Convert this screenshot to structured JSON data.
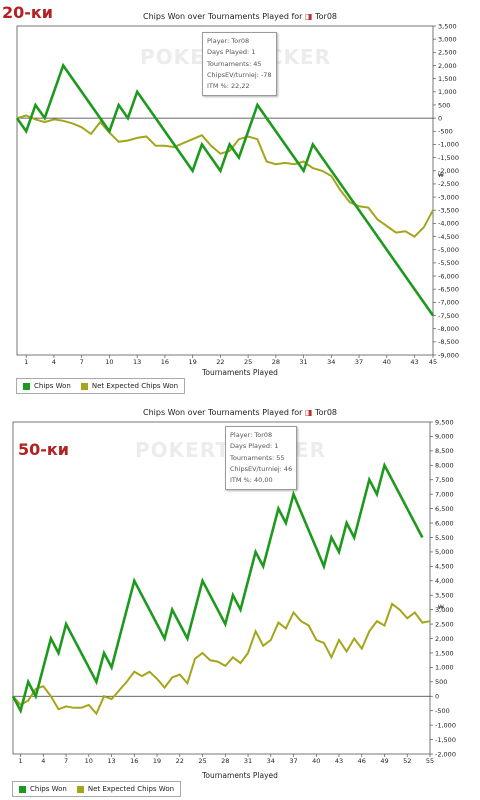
{
  "charts": [
    {
      "id": "panel1",
      "label": "20-ки",
      "infobox": {
        "player": "Player: Tor08",
        "days": "Days Played: 1",
        "tournaments": "Tournaments: 45",
        "chipsev": "ChipsEV/turniej: -78",
        "itm": "ITM %: 22,22"
      },
      "watermark": "POKERTRACKER",
      "legend": {
        "chips": "Chips Won",
        "nec": "Net Expected Chips Won"
      },
      "colors": {
        "chips": "#1d9a1d",
        "nec": "#a5a51c"
      }
    },
    {
      "id": "panel2",
      "label": "50-ки",
      "infobox": {
        "player": "Player: Tor08",
        "days": "Days Played: 1",
        "tournaments": "Tournaments: 55",
        "chipsev": "ChipsEV/turniej: 46",
        "itm": "ITM %: 40,00"
      },
      "watermark": "POKERTRACKER",
      "legend": {
        "chips": "Chips Won",
        "nec": "Net Expected Chips Won"
      },
      "colors": {
        "chips": "#1d9a1d",
        "nec": "#a5a51c"
      }
    }
  ],
  "chart_data": [
    {
      "type": "line",
      "title": "Chips Won over Tournaments Played for",
      "player_name": "Tor08",
      "xlabel": "Tournaments Played",
      "ylabel": "",
      "y_unit_symbol": "₩",
      "xlim": [
        0,
        45
      ],
      "ylim": [
        -9000,
        3500
      ],
      "xticks": [
        1,
        4,
        7,
        10,
        13,
        16,
        19,
        22,
        25,
        28,
        31,
        34,
        37,
        40,
        43,
        45
      ],
      "yticks": [
        -9000,
        -8500,
        -8000,
        -7500,
        -7000,
        -6500,
        -6000,
        -5500,
        -5000,
        -4500,
        -4000,
        -3500,
        -3000,
        -2500,
        -2000,
        -1500,
        -1000,
        -500,
        0,
        500,
        1000,
        1500,
        2000,
        2500,
        3000,
        3500
      ],
      "ytick_labels": [
        "-9,000",
        "-8,500",
        "-8,000",
        "-7,500",
        "-7,000",
        "-6,500",
        "-6,000",
        "-5,500",
        "-5,000",
        "-4,500",
        "-4,000",
        "-3,500",
        "-3,000",
        "-2,500",
        "-2,000",
        "-1,500",
        "-1,000",
        "-500",
        "0",
        "500",
        "1,000",
        "1,500",
        "2,000",
        "2,500",
        "3,000",
        "3,500"
      ],
      "legend_position": "bottom-left",
      "series": [
        {
          "name": "Chips Won",
          "x": [
            0,
            1,
            2,
            3,
            5,
            10,
            11,
            12,
            13,
            19,
            20,
            22,
            23,
            24,
            26,
            31,
            32,
            45
          ],
          "y": [
            0,
            -500,
            500,
            0,
            2000,
            -500,
            500,
            0,
            1000,
            -2000,
            -1000,
            -2000,
            -1000,
            -1500,
            500,
            -2000,
            -1000,
            -7500
          ]
        },
        {
          "name": "Net Expected Chips Won",
          "x": [
            0,
            1,
            2,
            3,
            4,
            5,
            6,
            7,
            8,
            9,
            10,
            11,
            12,
            13,
            14,
            15,
            16,
            17,
            18,
            19,
            20,
            21,
            22,
            23,
            24,
            25,
            26,
            27,
            28,
            29,
            30,
            31,
            32,
            33,
            34,
            35,
            36,
            37,
            38,
            39,
            40,
            41,
            42,
            43,
            44,
            45
          ],
          "y": [
            0,
            100,
            -50,
            -150,
            -50,
            -100,
            -200,
            -350,
            -600,
            -150,
            -550,
            -900,
            -850,
            -750,
            -700,
            -1050,
            -1050,
            -1100,
            -950,
            -800,
            -650,
            -1050,
            -1350,
            -1250,
            -800,
            -700,
            -800,
            -1650,
            -1750,
            -1700,
            -1750,
            -1650,
            -1900,
            -2000,
            -2200,
            -2750,
            -3200,
            -3350,
            -3400,
            -3850,
            -4100,
            -4350,
            -4300,
            -4500,
            -4150,
            -3500
          ]
        }
      ]
    },
    {
      "type": "line",
      "title": "Chips Won over Tournaments Played for",
      "player_name": "Tor08",
      "xlabel": "Tournaments Played",
      "ylabel": "",
      "y_unit_symbol": "₩",
      "xlim": [
        0,
        55
      ],
      "ylim": [
        -2000,
        9500
      ],
      "xticks": [
        1,
        4,
        7,
        10,
        13,
        16,
        19,
        22,
        25,
        28,
        31,
        34,
        37,
        40,
        43,
        46,
        49,
        52,
        55
      ],
      "yticks": [
        -2000,
        -1500,
        -1000,
        -500,
        0,
        500,
        1000,
        1500,
        2000,
        2500,
        3000,
        3500,
        4000,
        4500,
        5000,
        5500,
        6000,
        6500,
        7000,
        7500,
        8000,
        8500,
        9000,
        9500
      ],
      "ytick_labels": [
        "-2,000",
        "-1,500",
        "-1,000",
        "-500",
        "0",
        "500",
        "1,000",
        "1,500",
        "2,000",
        "2,500",
        "3,000",
        "3,500",
        "4,000",
        "4,500",
        "5,000",
        "5,500",
        "6,000",
        "6,500",
        "7,000",
        "7,500",
        "8,000",
        "8,500",
        "9,000",
        "9,500"
      ],
      "legend_position": "bottom-left",
      "series": [
        {
          "name": "Chips Won",
          "x": [
            0,
            1,
            2,
            3,
            5,
            6,
            7,
            11,
            12,
            13,
            16,
            20,
            21,
            23,
            25,
            28,
            29,
            30,
            32,
            33,
            35,
            36,
            37,
            41,
            42,
            43,
            44,
            45,
            47,
            48,
            49,
            54
          ],
          "y": [
            0,
            -500,
            500,
            0,
            2000,
            1500,
            2500,
            500,
            1500,
            1000,
            4000,
            2000,
            3000,
            2000,
            4000,
            2500,
            3500,
            3000,
            5000,
            4500,
            6500,
            6000,
            7000,
            4500,
            5500,
            5000,
            6000,
            5500,
            7500,
            7000,
            8000,
            5500
          ]
        },
        {
          "name": "Net Expected Chips Won",
          "x": [
            0,
            1,
            2,
            3,
            4,
            5,
            6,
            7,
            8,
            9,
            10,
            11,
            12,
            13,
            14,
            15,
            16,
            17,
            18,
            19,
            20,
            21,
            22,
            23,
            24,
            25,
            26,
            27,
            28,
            29,
            30,
            31,
            32,
            33,
            34,
            35,
            36,
            37,
            38,
            39,
            40,
            41,
            42,
            43,
            44,
            45,
            46,
            47,
            48,
            49,
            50,
            51,
            52,
            53,
            54,
            55
          ],
          "y": [
            0,
            -300,
            -150,
            250,
            350,
            0,
            -450,
            -350,
            -400,
            -400,
            -300,
            -600,
            0,
            -100,
            200,
            500,
            850,
            700,
            850,
            600,
            300,
            650,
            750,
            450,
            1300,
            1500,
            1250,
            1200,
            1050,
            1350,
            1150,
            1500,
            2250,
            1750,
            1950,
            2550,
            2350,
            2900,
            2600,
            2450,
            1950,
            1850,
            1350,
            1950,
            1550,
            2000,
            1650,
            2250,
            2600,
            2450,
            3200,
            3000,
            2700,
            2900,
            2550,
            2600
          ]
        }
      ]
    }
  ]
}
